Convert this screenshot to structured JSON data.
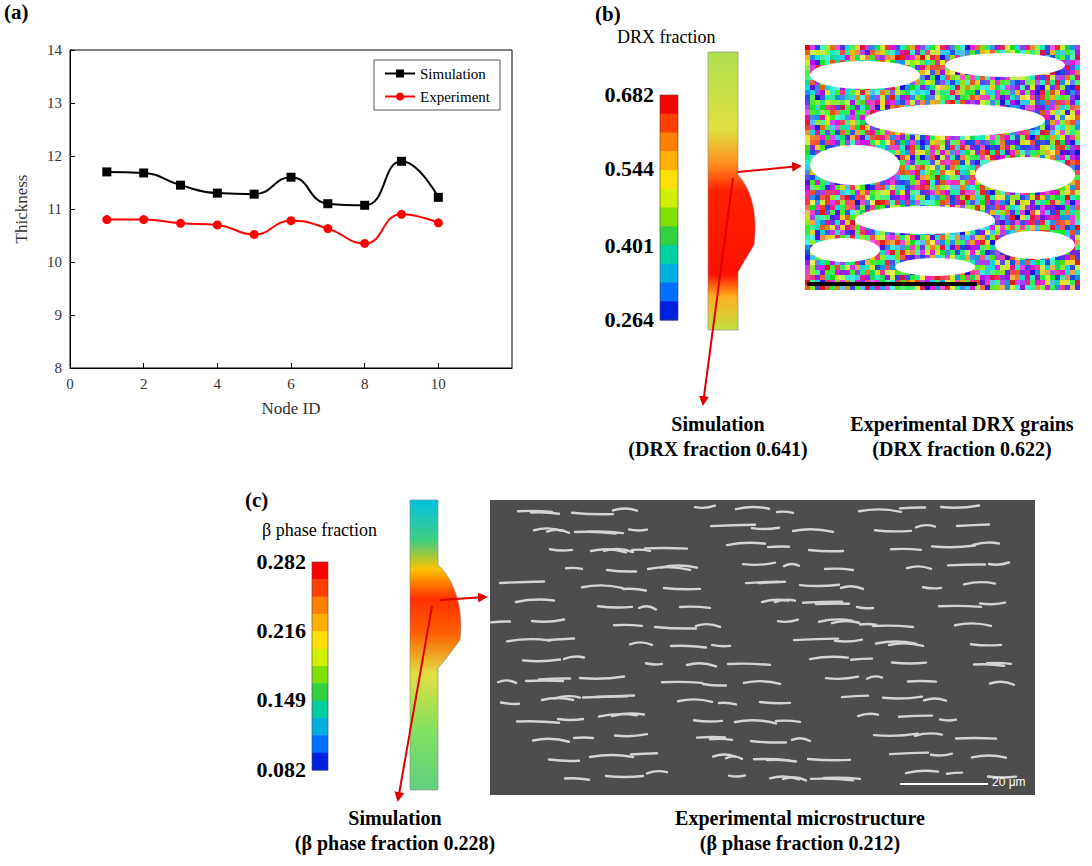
{
  "panel_letters": [
    "(a)",
    "(b)",
    "(c)"
  ],
  "chart_data": {
    "type": "line",
    "x_label": "Node ID",
    "y_label": "Thickness",
    "x": [
      1,
      2,
      3,
      4,
      5,
      6,
      7,
      8,
      9,
      10
    ],
    "series": [
      {
        "name": "Simulation",
        "color": "#000000",
        "marker": "square",
        "line_style": "solid",
        "values": [
          11.7,
          11.68,
          11.45,
          11.3,
          11.28,
          11.6,
          11.1,
          11.07,
          11.9,
          11.22
        ]
      },
      {
        "name": "Experiment",
        "color": "#ff0000",
        "marker": "circle",
        "line_style": "solid",
        "values": [
          10.8,
          10.8,
          10.73,
          10.7,
          10.52,
          10.78,
          10.63,
          10.35,
          10.9,
          10.74
        ]
      }
    ],
    "xlim": [
      0,
      12
    ],
    "xticks": [
      0,
      2,
      4,
      6,
      8,
      10
    ],
    "ylim": [
      8,
      14
    ],
    "yticks": [
      8,
      9,
      10,
      11,
      12,
      13,
      14
    ],
    "grid": false,
    "legend": "upper right"
  },
  "panel_b": {
    "colorbar": {
      "title": "DRX fraction",
      "range": [
        0.264,
        0.682
      ],
      "ticks": [
        0.682,
        0.544,
        0.401,
        0.264
      ]
    },
    "simulation_caption": [
      "Simulation",
      "(DRX fraction 0.641)"
    ],
    "experiment_caption": [
      "Experimental DRX grains",
      "(DRX fraction 0.622)"
    ]
  },
  "panel_c": {
    "colorbar": {
      "title": "β phase fraction",
      "range": [
        0.082,
        0.282
      ],
      "ticks": [
        0.282,
        0.216,
        0.149,
        0.082
      ]
    },
    "simulation_caption": [
      "Simulation",
      "(β phase fraction 0.228)"
    ],
    "experiment_caption": [
      "Experimental microstructure",
      "(β phase fraction 0.212)"
    ],
    "scale_bar": "20 μm"
  }
}
